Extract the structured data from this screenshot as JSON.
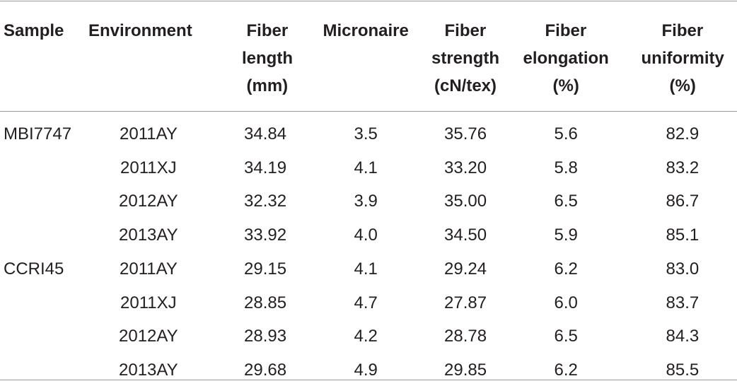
{
  "table": {
    "header": [
      [
        "Sample"
      ],
      [
        "Environment"
      ],
      [
        "Fiber",
        "length",
        "(mm)"
      ],
      [
        "Micronaire"
      ],
      [
        "Fiber",
        "strength",
        "(cN/tex)"
      ],
      [
        "Fiber",
        "elongation",
        "(%)"
      ],
      [
        "Fiber",
        "uniformity",
        "(%)"
      ]
    ],
    "groups": [
      {
        "sample": "MBI7747",
        "rows": [
          [
            "2011AY",
            "34.84",
            "3.5",
            "35.76",
            "5.6",
            "82.9"
          ],
          [
            "2011XJ",
            "34.19",
            "4.1",
            "33.20",
            "5.8",
            "83.2"
          ],
          [
            "2012AY",
            "32.32",
            "3.9",
            "35.00",
            "6.5",
            "86.7"
          ],
          [
            "2013AY",
            "33.92",
            "4.0",
            "34.50",
            "5.9",
            "85.1"
          ]
        ]
      },
      {
        "sample": "CCRI45",
        "rows": [
          [
            "2011AY",
            "29.15",
            "4.1",
            "29.24",
            "6.2",
            "83.0"
          ],
          [
            "2011XJ",
            "28.85",
            "4.7",
            "27.87",
            "6.0",
            "83.7"
          ],
          [
            "2012AY",
            "28.93",
            "4.2",
            "28.78",
            "6.5",
            "84.3"
          ],
          [
            "2013AY",
            "29.68",
            "4.9",
            "29.85",
            "6.2",
            "85.5"
          ]
        ]
      }
    ]
  }
}
